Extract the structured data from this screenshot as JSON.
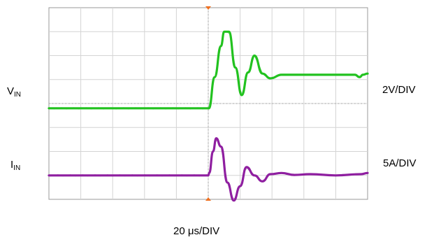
{
  "chart_data": {
    "type": "line",
    "title": "",
    "xlabel": "20 μs/DIV",
    "grid": true,
    "x_divisions": 10,
    "y_divisions": 8,
    "x_unit": "div",
    "trigger_div": 5,
    "series": [
      {
        "name": "VIN",
        "label_main": "V",
        "label_sub": "IN",
        "scale": "2V/DIV",
        "color": "#22c21f",
        "baseline_div": 3.8,
        "x": [
          0,
          5.0,
          5.02,
          5.2,
          5.4,
          5.5,
          5.65,
          5.85,
          6.05,
          6.25,
          6.45,
          6.7,
          6.95,
          7.3,
          8,
          9,
          9.6,
          9.75,
          9.85,
          10
        ],
        "y": [
          3.8,
          3.8,
          3.8,
          5.1,
          6.4,
          7.0,
          7.0,
          5.5,
          4.35,
          5.3,
          6.0,
          5.25,
          5.05,
          5.2,
          5.2,
          5.2,
          5.2,
          5.1,
          5.2,
          5.25
        ]
      },
      {
        "name": "IIN",
        "label_main": "I",
        "label_sub": "IN",
        "scale": "5A/DIV",
        "color": "#8f1fa0",
        "baseline_div": 1.0,
        "x": [
          0,
          5.0,
          5.03,
          5.15,
          5.25,
          5.4,
          5.6,
          5.8,
          6.0,
          6.2,
          6.45,
          6.7,
          6.95,
          7.3,
          7.7,
          8.2,
          9,
          9.8,
          10
        ],
        "y": [
          1.0,
          1.0,
          1.1,
          2.0,
          2.55,
          2.2,
          0.7,
          -0.05,
          0.55,
          1.35,
          1.0,
          0.75,
          1.05,
          1.1,
          1.02,
          1.05,
          1.0,
          1.05,
          1.1
        ]
      }
    ]
  }
}
